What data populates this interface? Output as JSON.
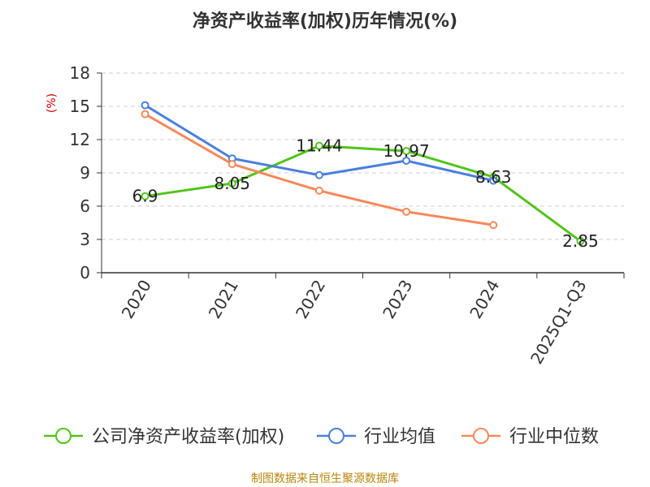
{
  "chart_data": {
    "type": "line",
    "title": "净资产收益率(加权)历年情况(%)",
    "ylabel": "(%)",
    "xlabel": "",
    "categories": [
      "2020",
      "2021",
      "2022",
      "2023",
      "2024",
      "2025Q1-Q3"
    ],
    "ylim": [
      0,
      18
    ],
    "yticks": [
      0,
      3,
      6,
      9,
      12,
      15,
      18
    ],
    "ytick_labels": [
      "0",
      "3",
      "6",
      "9",
      "12",
      "15",
      "18"
    ],
    "grid": true,
    "legend_position": "bottom",
    "series": [
      {
        "name": "公司净资产收益率(加权)",
        "color": "#52c41a",
        "values": [
          6.9,
          8.05,
          11.44,
          10.97,
          8.63,
          2.85
        ],
        "labels": [
          "6.9",
          "8.05",
          "11.44",
          "10.97",
          "8.63",
          "2.85"
        ]
      },
      {
        "name": "行业均值",
        "color": "#4a7fdc",
        "values": [
          15.1,
          10.3,
          8.8,
          10.1,
          8.3,
          null
        ]
      },
      {
        "name": "行业中位数",
        "color": "#f5895a",
        "values": [
          14.3,
          9.8,
          7.4,
          5.5,
          4.3,
          null
        ]
      }
    ],
    "source": "制图数据来自恒生聚源数据库"
  }
}
